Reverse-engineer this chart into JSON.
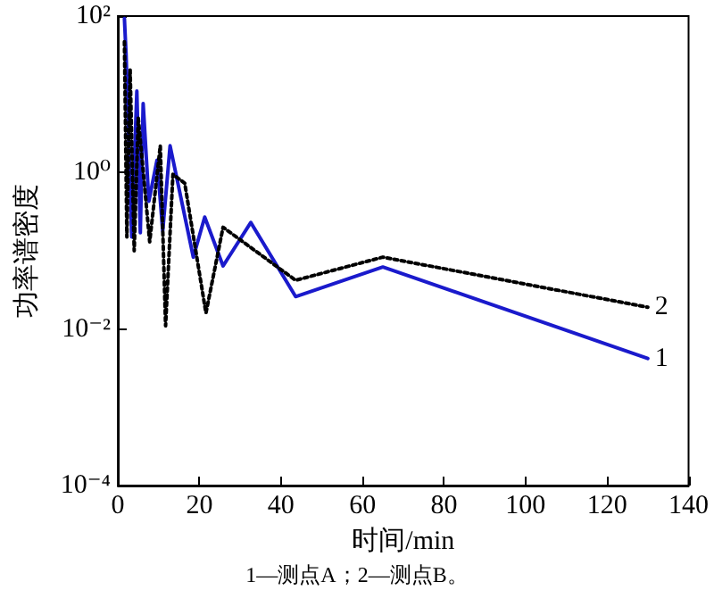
{
  "chart_data": {
    "type": "line",
    "xlabel": "时间/min",
    "ylabel": "功率谱密度",
    "annotations": [
      "1—测点A；2—测点B。"
    ],
    "log": "y",
    "grid": false,
    "legend": false,
    "marker": "none",
    "xlim": [
      0,
      140
    ],
    "xticks": [
      0,
      20,
      40,
      60,
      80,
      100,
      120,
      140
    ],
    "ylim": [
      0.0001,
      100
    ],
    "yticks": [
      {
        "value": 0.0001,
        "label": "10⁻⁴"
      },
      {
        "value": 0.01,
        "label": "10⁻²"
      },
      {
        "value": 1,
        "label": "10⁰"
      },
      {
        "value": 100,
        "label": "10²"
      }
    ],
    "series": [
      {
        "name": "1",
        "color": "#1a1acc",
        "line_style": "solid",
        "x": [
          1.6,
          2.0,
          3.4,
          4.65,
          5.5,
          6.2,
          7.6,
          9.6,
          11,
          12.8,
          18.5,
          21.3,
          25.8,
          32.6,
          43.6,
          65,
          130
        ],
        "values": [
          93,
          33,
          0.15,
          11,
          0.17,
          7.6,
          0.43,
          1.44,
          0.18,
          2.2,
          0.083,
          0.27,
          0.064,
          0.23,
          0.026,
          0.062,
          0.0042
        ]
      },
      {
        "name": "2",
        "color": "#000000",
        "line_style": "dotted",
        "x": [
          1.6,
          2.2,
          3,
          4,
          5,
          7.8,
          10.4,
          11.7,
          13.5,
          16.4,
          21.6,
          25.8,
          43.6,
          65,
          130
        ],
        "values": [
          47,
          0.15,
          21,
          0.1,
          5,
          0.13,
          2.2,
          0.011,
          0.95,
          0.73,
          0.016,
          0.2,
          0.042,
          0.083,
          0.019
        ]
      }
    ]
  }
}
